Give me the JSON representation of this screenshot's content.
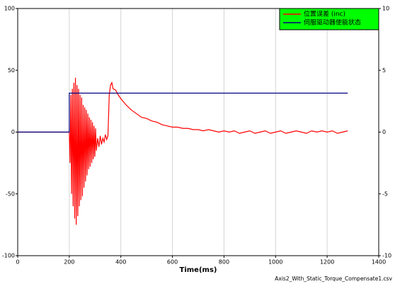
{
  "chart_data": {
    "type": "line",
    "xlabel": "Time(ms)",
    "note": "Axis2_With_Static_Torque_Compensate1.csv",
    "xlim": [
      0,
      1400
    ],
    "xticks": [
      0,
      200,
      400,
      600,
      800,
      1000,
      1200,
      1400
    ],
    "ylim": [
      -100,
      100
    ],
    "yticks": [
      -100,
      -50,
      0,
      50,
      100
    ],
    "y2lim": [
      -10,
      10
    ],
    "y2ticks": [
      -10,
      -5,
      0,
      5,
      10
    ],
    "grid": "x",
    "legend": "upper right",
    "legend_color": "#00ff00",
    "series": [
      {
        "name": "位置误差 (inc)",
        "color": "#ff0000",
        "x": [
          0,
          200,
          203,
          206,
          209,
          212,
          215,
          218,
          221,
          224,
          227,
          230,
          233,
          236,
          239,
          242,
          245,
          248,
          251,
          254,
          257,
          260,
          263,
          266,
          269,
          272,
          275,
          278,
          281,
          284,
          287,
          290,
          293,
          296,
          299,
          302,
          305,
          310,
          315,
          320,
          325,
          330,
          335,
          340,
          345,
          350,
          355,
          360,
          365,
          370,
          380,
          390,
          400,
          420,
          440,
          460,
          480,
          500,
          520,
          540,
          560,
          580,
          600,
          620,
          640,
          660,
          680,
          700,
          720,
          740,
          760,
          780,
          800,
          820,
          840,
          860,
          880,
          900,
          920,
          940,
          960,
          980,
          1000,
          1020,
          1040,
          1060,
          1080,
          1100,
          1120,
          1140,
          1160,
          1180,
          1200,
          1220,
          1240,
          1260,
          1280
        ],
        "values": [
          0,
          0,
          -25,
          30,
          -50,
          35,
          -60,
          40,
          -70,
          44,
          -75,
          38,
          -68,
          35,
          -60,
          30,
          -55,
          28,
          -52,
          22,
          -45,
          20,
          -40,
          18,
          -35,
          15,
          -30,
          12,
          -28,
          10,
          -25,
          8,
          -22,
          5,
          -20,
          3,
          -15,
          -5,
          -12,
          -3,
          -10,
          -5,
          -8,
          -2,
          -6,
          -3,
          30,
          38,
          40,
          35,
          34,
          30,
          27,
          22,
          18,
          15,
          12,
          11,
          9,
          8,
          6,
          5,
          4,
          4,
          3,
          3,
          2,
          2,
          1,
          2,
          1,
          0,
          1,
          0,
          1,
          -1,
          0,
          1,
          -1,
          0,
          1,
          -1,
          0,
          1,
          -1,
          0,
          1,
          0,
          -1,
          1,
          0,
          1,
          0,
          1,
          -1,
          0,
          1
        ]
      },
      {
        "name": "伺服驱动器使能状态",
        "color": "#000080",
        "axis": "y2",
        "x": [
          0,
          200,
          200,
          1280
        ],
        "values": [
          0,
          0,
          3.15,
          3.15
        ]
      }
    ]
  }
}
